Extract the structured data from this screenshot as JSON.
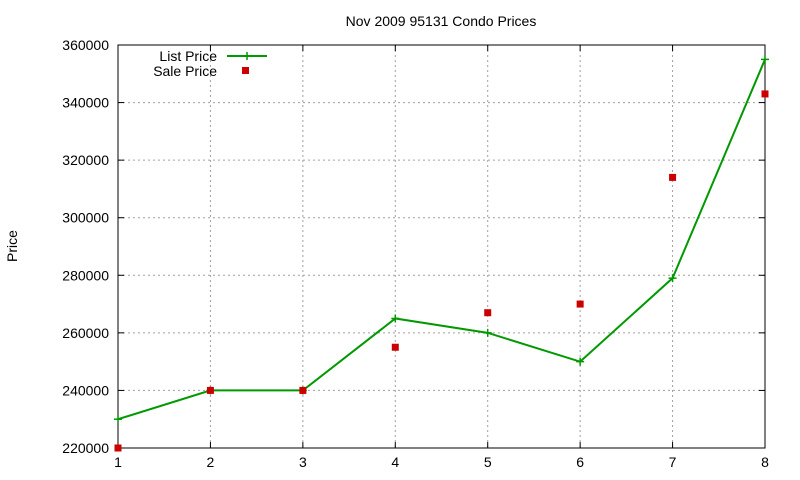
{
  "chart_data": {
    "type": "line",
    "title": "Nov 2009 95131 Condo Prices",
    "xlabel": "",
    "ylabel": "Price",
    "x": [
      1,
      2,
      3,
      4,
      5,
      6,
      7,
      8
    ],
    "xlim": [
      1,
      8
    ],
    "ylim": [
      220000,
      360000
    ],
    "x_ticks": [
      "1",
      "2",
      "3",
      "4",
      "5",
      "6",
      "7",
      "8"
    ],
    "y_ticks": [
      "220000",
      "240000",
      "260000",
      "280000",
      "300000",
      "320000",
      "340000",
      "360000"
    ],
    "grid": true,
    "legend_position": "top-left",
    "series": [
      {
        "name": "List Price",
        "style": "line-with-plus-markers",
        "color": "#009900",
        "x": [
          1,
          2,
          3,
          4,
          5,
          6,
          7,
          8
        ],
        "values": [
          230000,
          240000,
          240000,
          265000,
          260000,
          250000,
          279000,
          355000
        ]
      },
      {
        "name": "Sale Price",
        "style": "square-markers",
        "color": "#cc0000",
        "x": [
          1,
          2,
          3,
          4,
          5,
          6,
          7,
          8
        ],
        "values": [
          220000,
          240000,
          240000,
          255000,
          267000,
          270000,
          314000,
          343000
        ]
      }
    ]
  }
}
